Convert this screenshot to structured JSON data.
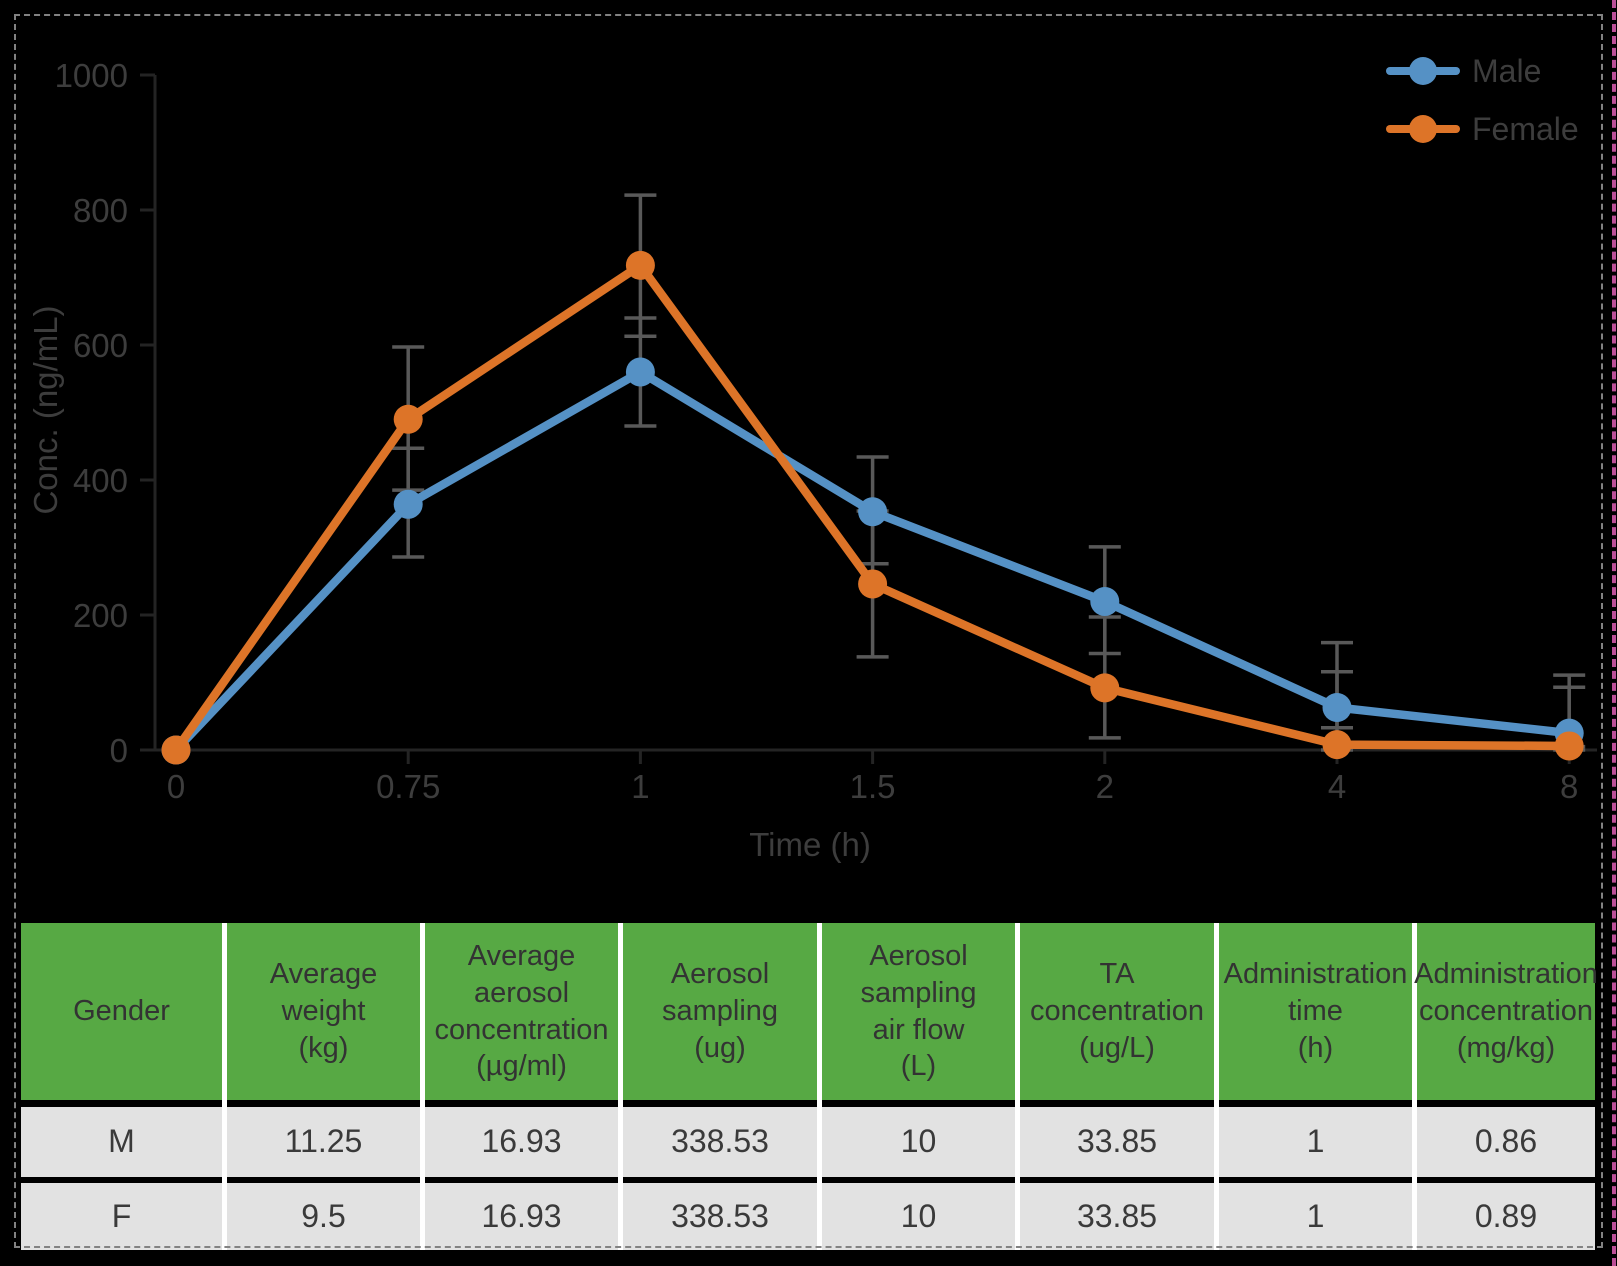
{
  "chart_data": {
    "type": "line",
    "xlabel": "Time (h)",
    "ylabel": "Conc. (ng/mL)",
    "categories": [
      "0",
      "0.75",
      "1",
      "1.5",
      "2",
      "4",
      "8"
    ],
    "y_ticks": [
      0,
      200,
      400,
      600,
      800,
      1000
    ],
    "ylim": [
      0,
      1000
    ],
    "grid": "off",
    "legend_position": "top-right",
    "error_bars": true,
    "series": [
      {
        "name": "Male",
        "color": "#5591C5",
        "values": [
          0,
          364,
          560,
          353,
          220,
          63,
          25
        ],
        "err_plus": [
          0,
          83,
          80,
          81,
          81,
          96,
          86
        ],
        "err_minus": [
          0,
          78,
          80,
          77,
          77,
          30,
          20
        ]
      },
      {
        "name": "Female",
        "color": "#DD7428",
        "values": [
          0,
          490,
          718,
          246,
          92,
          8,
          6
        ],
        "err_plus": [
          0,
          107,
          104,
          108,
          105,
          108,
          87
        ],
        "err_minus": [
          0,
          105,
          105,
          108,
          74,
          8,
          6
        ]
      }
    ]
  },
  "table": {
    "columns": [
      "Gender",
      "Average\nweight\n(kg)",
      "Average\naerosol\nconcentration\n(µg/ml)",
      "Aerosol\nsampling\n(ug)",
      "Aerosol\nsampling\nair flow\n(L)",
      "TA\nconcentration\n(ug/L)",
      "Administration\ntime\n(h)",
      "Administration\nconcentration\n(mg/kg)"
    ],
    "rows": [
      [
        "M",
        "11.25",
        "16.93",
        "338.53",
        "10",
        "33.85",
        "1",
        "0.86"
      ],
      [
        "F",
        "9.5",
        "16.93",
        "338.53",
        "10",
        "33.85",
        "1",
        "0.89"
      ]
    ]
  },
  "colors": {
    "male_series": "#5591C5",
    "female_series": "#DD7428",
    "table_header_green": "#57A944",
    "table_row_gray": "#E2E2E2",
    "error_bar_gray": "#595959",
    "axis_gray": "#242424",
    "chart_text_gray": "#3D3D3D",
    "selection_border_gray": "#828282",
    "right_edge_pink": "#BC4F97"
  }
}
